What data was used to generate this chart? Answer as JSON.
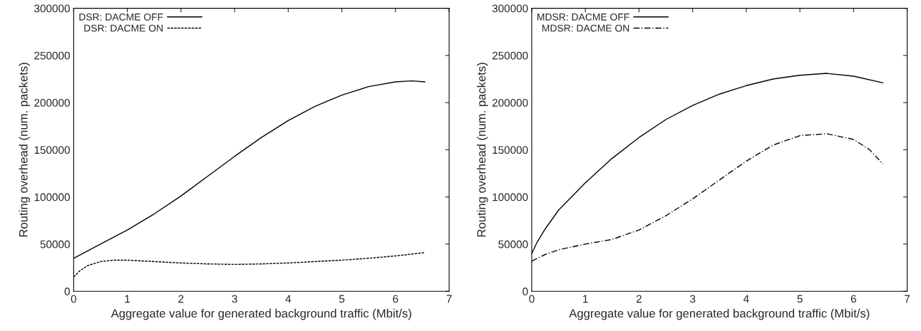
{
  "chart_data": [
    {
      "type": "line",
      "xlabel": "Aggregate value for generated background traffic (Mbit/s)",
      "ylabel": "Routing overhead (num. packets)",
      "xlim": [
        0,
        7
      ],
      "ylim": [
        0,
        300000
      ],
      "xticks": [
        0,
        1,
        2,
        3,
        4,
        5,
        6,
        7
      ],
      "yticks": [
        0,
        50000,
        100000,
        150000,
        200000,
        250000,
        300000
      ],
      "legend": "top left",
      "grid": false,
      "marker": "none",
      "series": [
        {
          "name": "DSR: DACME OFF",
          "color": "#000000",
          "line_style": "solid",
          "x": [
            0,
            0.5,
            1,
            1.5,
            2,
            2.5,
            3,
            3.5,
            4,
            4.5,
            5,
            5.5,
            6,
            6.3,
            6.55
          ],
          "values": [
            35000,
            50000,
            65000,
            82000,
            101000,
            122000,
            143000,
            163000,
            181000,
            196000,
            208000,
            217000,
            222000,
            223000,
            222000
          ]
        },
        {
          "name": "DSR: DACME ON",
          "color": "#000000",
          "line_style": "dashed",
          "x": [
            0,
            0.1,
            0.25,
            0.5,
            0.75,
            1,
            1.5,
            2,
            2.5,
            3,
            3.5,
            4,
            4.5,
            5,
            5.5,
            6,
            6.55
          ],
          "values": [
            15000,
            21000,
            27000,
            31500,
            33000,
            33000,
            31500,
            30000,
            29000,
            28500,
            29000,
            30000,
            31500,
            33000,
            35000,
            37500,
            41000
          ]
        }
      ]
    },
    {
      "type": "line",
      "xlabel": "Aggregate value for generated background traffic (Mbit/s)",
      "ylabel": "Routing overhead (num. packets)",
      "xlim": [
        0,
        7
      ],
      "ylim": [
        0,
        300000
      ],
      "xticks": [
        0,
        1,
        2,
        3,
        4,
        5,
        6,
        7
      ],
      "yticks": [
        0,
        50000,
        100000,
        150000,
        200000,
        250000,
        300000
      ],
      "legend": "top left",
      "grid": false,
      "marker": "none",
      "series": [
        {
          "name": "MDSR: DACME OFF",
          "color": "#000000",
          "line_style": "solid",
          "x": [
            0,
            0.1,
            0.25,
            0.5,
            1,
            1.5,
            2,
            2.5,
            3,
            3.5,
            4,
            4.5,
            5,
            5.5,
            6,
            6.55
          ],
          "values": [
            40000,
            52000,
            66000,
            86000,
            115000,
            141000,
            163000,
            182000,
            197000,
            209000,
            218000,
            225000,
            229000,
            231000,
            228000,
            221000
          ]
        },
        {
          "name": "MDSR: DACME ON",
          "color": "#000000",
          "line_style": "dashdot",
          "x": [
            0,
            0.25,
            0.5,
            1,
            1.5,
            2,
            2.5,
            3,
            3.5,
            4,
            4.5,
            5,
            5.5,
            6,
            6.3,
            6.55
          ],
          "values": [
            32000,
            39000,
            44000,
            50000,
            55000,
            65000,
            80000,
            98000,
            118000,
            138000,
            155000,
            165000,
            167000,
            161000,
            150000,
            135000
          ]
        }
      ]
    }
  ]
}
